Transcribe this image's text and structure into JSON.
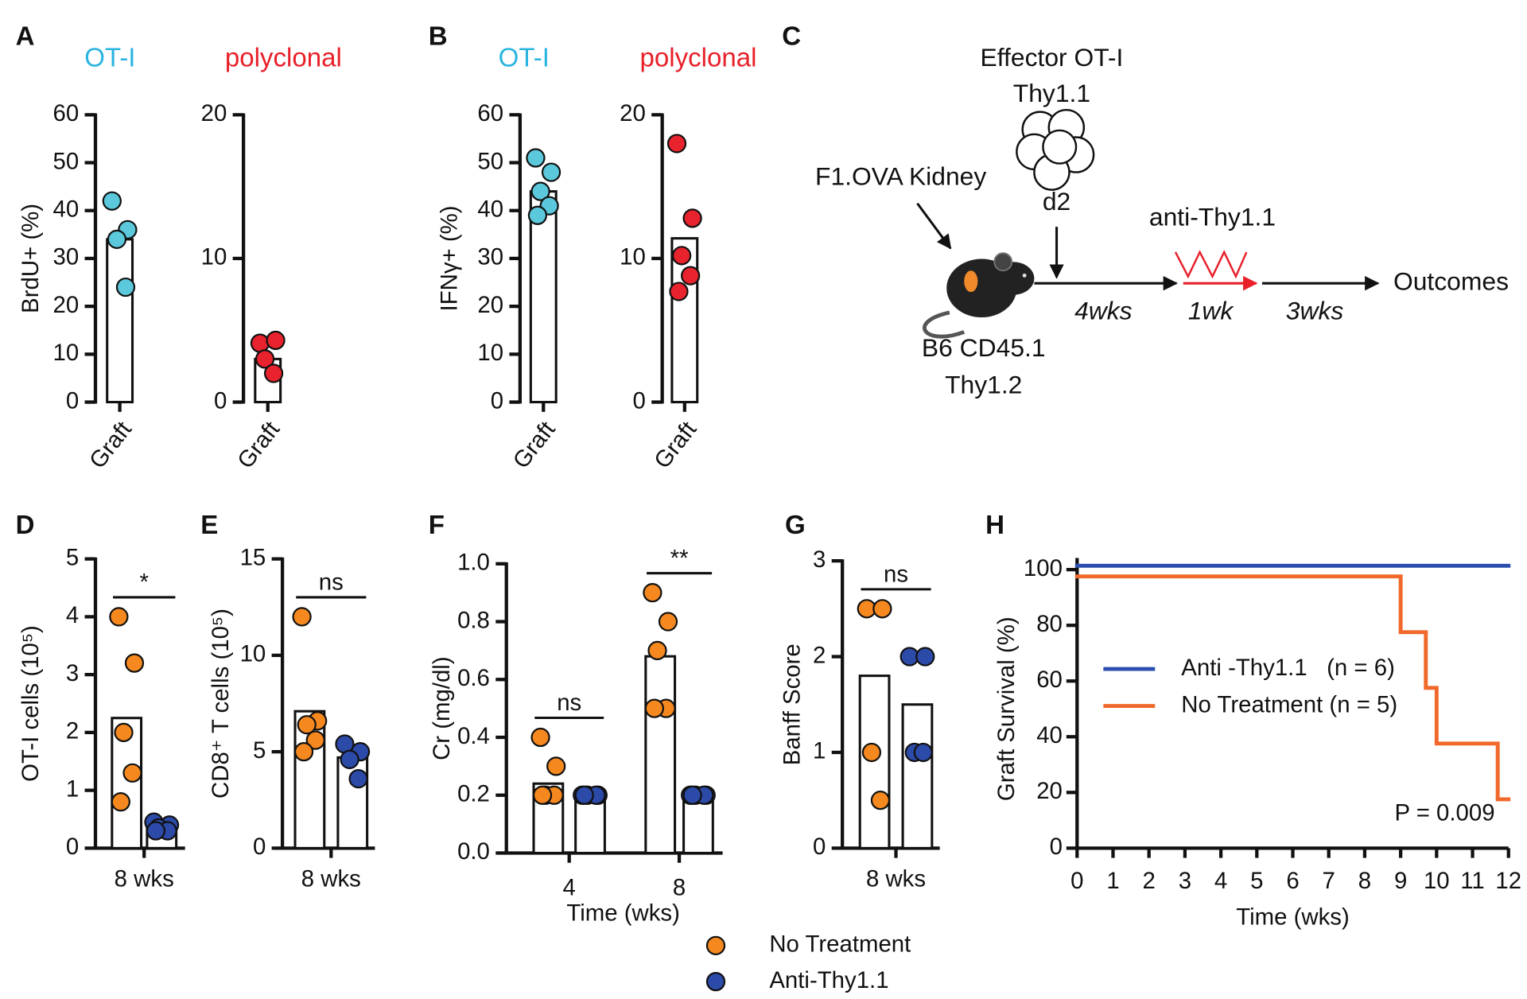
{
  "panel_labels": [
    "A",
    "B",
    "C",
    "D",
    "E",
    "F",
    "G",
    "H"
  ],
  "diagram": {
    "top_label": [
      "Effector OT-I",
      "Thy1.1"
    ],
    "dose": "d2",
    "organ": "F1.OVA Kidney",
    "treatment": "anti-Thy1.1",
    "outcome": "Outcomes",
    "intervals": [
      "4wks",
      "1wk",
      "3wks"
    ],
    "host": [
      "B6 CD45.1",
      "Thy1.2"
    ]
  },
  "chart_data": [
    {
      "type": "dotbar",
      "title": "OT-I",
      "title_color": "#2ab4e0",
      "ylabel": "BrdU+ (%)",
      "ylim": [
        0,
        60
      ],
      "yticks": [
        0,
        10,
        20,
        30,
        40,
        50,
        60
      ],
      "categories": [
        "Graft"
      ],
      "series": [
        {
          "color": "#5bc8dc",
          "values": [
            34
          ],
          "points": [
            [
              42,
              36,
              34,
              24
            ]
          ]
        }
      ]
    },
    {
      "type": "dotbar",
      "title": "polyclonal",
      "title_color": "#e8202a",
      "ylim": [
        0,
        20
      ],
      "yticks": [
        0,
        10,
        20
      ],
      "categories": [
        "Graft"
      ],
      "series": [
        {
          "color": "#e8232e",
          "values": [
            3
          ],
          "points": [
            [
              4.1,
              4.3,
              3.0,
              2.0
            ]
          ]
        }
      ]
    },
    {
      "type": "dotbar",
      "title": "OT-I",
      "title_color": "#2ab4e0",
      "ylabel": "IFNγ+ (%)",
      "ylim": [
        0,
        60
      ],
      "yticks": [
        0,
        10,
        20,
        30,
        40,
        50,
        60
      ],
      "categories": [
        "Graft"
      ],
      "series": [
        {
          "color": "#5bc8dc",
          "values": [
            44
          ],
          "points": [
            [
              51,
              48,
              44,
              41,
              39
            ]
          ]
        }
      ]
    },
    {
      "type": "dotbar",
      "title": "polyclonal",
      "title_color": "#e8202a",
      "ylim": [
        0,
        20
      ],
      "yticks": [
        0,
        10,
        20
      ],
      "categories": [
        "Graft"
      ],
      "series": [
        {
          "color": "#e8232e",
          "values": [
            11.4
          ],
          "points": [
            [
              18,
              12.8,
              10.2,
              8.8,
              7.7
            ]
          ]
        }
      ]
    },
    {
      "type": "dotbar",
      "ylabel": "OT-I cells (10⁵)",
      "ylim": [
        0,
        5
      ],
      "yticks": [
        0,
        1,
        2,
        3,
        4,
        5
      ],
      "categories": [
        "8 wks"
      ],
      "significance": [
        "*"
      ],
      "series": [
        {
          "color": "#f5891f",
          "values": [
            2.25
          ],
          "points": [
            [
              4,
              3.2,
              2,
              1.3,
              0.8
            ]
          ]
        },
        {
          "color": "#2c4aa8",
          "values": [
            0.36
          ],
          "points": [
            [
              0.45,
              0.4,
              0.35,
              0.3,
              0.3
            ]
          ]
        }
      ]
    },
    {
      "type": "dotbar",
      "ylabel": "CD8⁺ T cells (10⁵)",
      "ylim": [
        0,
        15
      ],
      "yticks": [
        0,
        5,
        10,
        15
      ],
      "categories": [
        "8 wks"
      ],
      "significance": [
        "ns"
      ],
      "series": [
        {
          "color": "#f5891f",
          "values": [
            7.1
          ],
          "points": [
            [
              12,
              6.6,
              6.4,
              5.6,
              5.0
            ]
          ]
        },
        {
          "color": "#2c4aa8",
          "values": [
            4.7
          ],
          "points": [
            [
              5.4,
              5.0,
              4.6,
              3.6
            ]
          ]
        }
      ]
    },
    {
      "type": "dotbar",
      "ylabel": "Cr (mg/dl)",
      "xlabel": "Time (wks)",
      "ylim": [
        0,
        1
      ],
      "yticks": [
        {
          "value": 0,
          "label": "0.0"
        },
        0.2,
        0.4,
        0.6,
        0.8,
        {
          "value": 1,
          "label": "1.0"
        }
      ],
      "categories": [
        "4",
        "8"
      ],
      "significance": [
        "ns",
        "**"
      ],
      "series": [
        {
          "name": "No Treatment",
          "color": "#f5891f",
          "values": [
            0.24,
            0.68
          ],
          "points": [
            [
              0.4,
              0.3,
              0.2,
              0.2,
              0.2
            ],
            [
              0.9,
              0.8,
              0.7,
              0.5,
              0.5
            ]
          ]
        },
        {
          "name": "Anti-Thy1.1",
          "color": "#2c4aa8",
          "values": [
            0.2,
            0.2
          ],
          "points": [
            [
              0.2,
              0.2,
              0.2,
              0.2,
              0.2
            ],
            [
              0.2,
              0.2,
              0.2,
              0.2,
              0.2
            ]
          ]
        }
      ]
    },
    {
      "type": "dotbar",
      "ylabel": "Banff Score",
      "ylim": [
        0,
        3
      ],
      "yticks": [
        0,
        1,
        2,
        3
      ],
      "categories": [
        "8 wks"
      ],
      "significance": [
        "ns"
      ],
      "series": [
        {
          "color": "#f5891f",
          "values": [
            1.8
          ],
          "points": [
            [
              2.5,
              2.5,
              1,
              0.5
            ]
          ]
        },
        {
          "color": "#2c4aa8",
          "values": [
            1.5
          ],
          "points": [
            [
              2,
              2,
              1,
              1
            ]
          ]
        }
      ]
    },
    {
      "type": "survival",
      "xlabel": "Time (wks)",
      "ylabel": "Graft Survival (%)",
      "xlim": [
        0,
        12
      ],
      "xticks": [
        0,
        1,
        2,
        3,
        4,
        5,
        6,
        7,
        8,
        9,
        10,
        11,
        12
      ],
      "ylim": [
        0,
        100
      ],
      "yticks": [
        0,
        20,
        40,
        60,
        80,
        100
      ],
      "annotation": "P = 0.009",
      "series": [
        {
          "name": "Anti -Thy1.1   (n = 6)",
          "color": "#2a4fae",
          "x": [
            0,
            12
          ],
          "values": [
            100,
            100
          ]
        },
        {
          "name": "No Treatment (n = 5)",
          "color": "#f0682a",
          "x": [
            0,
            9,
            9.7,
            10,
            11.7,
            12
          ],
          "values": [
            100,
            80,
            60,
            40,
            20,
            20
          ]
        }
      ]
    }
  ]
}
